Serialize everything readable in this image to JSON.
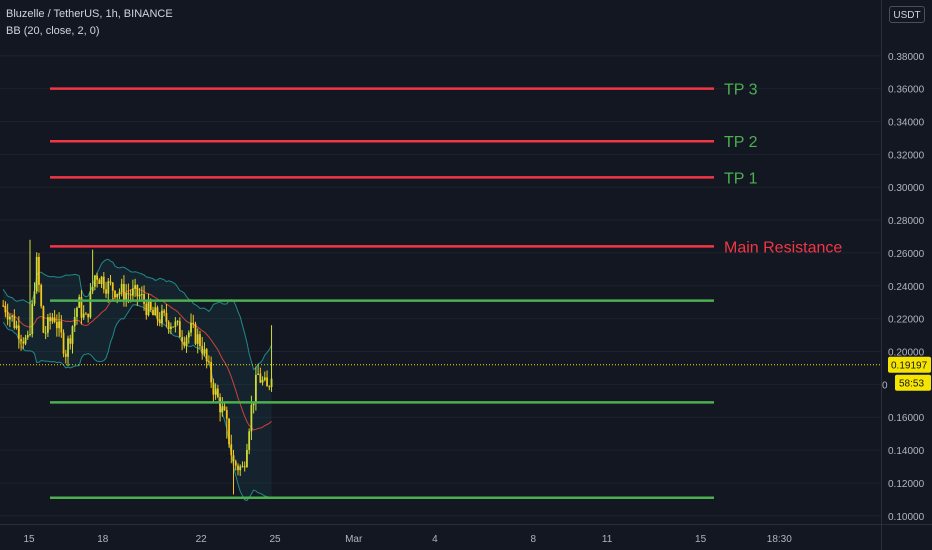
{
  "header": {
    "symbol": "Bluzelle / TetherUS, 1h, BINANCE",
    "indicator": "BB (20, close, 2, 0)"
  },
  "currency": "USDT",
  "price_axis": {
    "ticks": [
      "0.38000",
      "0.36000",
      "0.34000",
      "0.32000",
      "0.30000",
      "0.28000",
      "0.26000",
      "0.24000",
      "0.22000",
      "0.20000",
      "0.18000",
      "0.16000",
      "0.14000",
      "0.12000",
      "0.10000"
    ],
    "hidden_ticks": [
      "0.18000"
    ],
    "last_price": "0.19197",
    "countdown": "58:53",
    "last_price_partial": "0"
  },
  "time_axis": {
    "ticks": [
      "15",
      "18",
      "22",
      "25",
      "Mar",
      "4",
      "8",
      "11",
      "15",
      "18:30"
    ]
  },
  "colors": {
    "background": "#131722",
    "resistance": "#f23645",
    "support": "#4caf50",
    "label_tp": "#4caf50",
    "label_resistance": "#f23645",
    "candle_up": "#cddc39",
    "candle_down": "#f5c518",
    "bb_band": "#1f8a8a",
    "bb_basis": "#d0403a",
    "last_price": "#f5e400"
  },
  "chart_data": {
    "type": "candlestick",
    "x_range": [
      "Feb 14",
      "Mar 18"
    ],
    "ylim": [
      0.1,
      0.39
    ],
    "levels": [
      {
        "label": "TP 3",
        "price": 0.36,
        "color": "red"
      },
      {
        "label": "TP 2",
        "price": 0.328,
        "color": "red"
      },
      {
        "label": "TP 1",
        "price": 0.306,
        "color": "red"
      },
      {
        "label": "Main Resistance",
        "price": 0.264,
        "color": "red"
      },
      {
        "price": 0.231,
        "color": "green"
      },
      {
        "price": 0.169,
        "color": "green"
      },
      {
        "price": 0.111,
        "color": "green"
      }
    ],
    "price_path_days": [
      14.0,
      14.5,
      15.0,
      15.3,
      15.6,
      16.0,
      16.5,
      17.0,
      17.3,
      17.7,
      18.2,
      18.8,
      19.5,
      20.0,
      20.8,
      21.3,
      21.6,
      22.0,
      22.5,
      23.0,
      23.3,
      23.7,
      24.0,
      24.3,
      24.7,
      24.9
    ],
    "price_path": [
      0.228,
      0.215,
      0.203,
      0.255,
      0.21,
      0.223,
      0.2,
      0.23,
      0.218,
      0.248,
      0.24,
      0.236,
      0.234,
      0.222,
      0.218,
      0.209,
      0.213,
      0.205,
      0.178,
      0.158,
      0.132,
      0.128,
      0.162,
      0.186,
      0.176,
      0.192
    ],
    "last_price": 0.19197,
    "indicator": "Bollinger Bands (20, close, 2, 0)"
  }
}
